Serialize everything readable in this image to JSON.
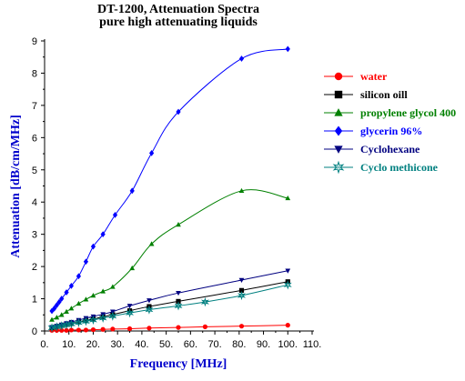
{
  "chart_data": {
    "type": "line",
    "title": "DT-1200, Attenuation Spectra",
    "subtitle": "pure high attenuating liquids",
    "xlabel": "Frequency [MHz]",
    "ylabel": "Attenuation [dB/cm/MHz]",
    "xlim": [
      0,
      110
    ],
    "ylim": [
      0,
      9
    ],
    "xticks": [
      "0.",
      "10.",
      "20.",
      "30.",
      "40.",
      "50.",
      "60.",
      "70.",
      "80.",
      "90.",
      "100.",
      "110."
    ],
    "yticks": [
      "0",
      "1",
      "2",
      "3",
      "4",
      "5",
      "6",
      "7",
      "8",
      "9"
    ],
    "grid": false,
    "legend_position": "right",
    "series": [
      {
        "name": "water",
        "color": "#ff0000",
        "marker": "circle",
        "x": [
          3,
          5,
          7,
          9,
          11,
          14,
          17,
          20,
          24,
          28,
          35,
          43,
          55,
          66,
          81,
          100
        ],
        "y": [
          0.02,
          0.02,
          0.02,
          0.02,
          0.03,
          0.03,
          0.03,
          0.04,
          0.05,
          0.06,
          0.07,
          0.09,
          0.11,
          0.13,
          0.15,
          0.18
        ]
      },
      {
        "name": "silicon oill",
        "color": "#000000",
        "marker": "square",
        "x": [
          3,
          5,
          7,
          9,
          11,
          14,
          17,
          20,
          24,
          28,
          35,
          43,
          55,
          81,
          100
        ],
        "y": [
          0.1,
          0.14,
          0.17,
          0.2,
          0.23,
          0.28,
          0.33,
          0.37,
          0.44,
          0.51,
          0.63,
          0.76,
          0.92,
          1.26,
          1.53
        ]
      },
      {
        "name": "propylene glycol 400",
        "color": "#008000",
        "marker": "triangle-up",
        "x": [
          3,
          5,
          7,
          9,
          11,
          14,
          17,
          20,
          24,
          28,
          36,
          44,
          55,
          81,
          100
        ],
        "y": [
          0.35,
          0.42,
          0.5,
          0.6,
          0.7,
          0.85,
          0.98,
          1.1,
          1.23,
          1.37,
          1.95,
          2.7,
          3.3,
          4.35,
          4.12
        ]
      },
      {
        "name": "glycerin 96%",
        "color": "#0000ff",
        "marker": "diamond",
        "x": [
          3,
          4,
          5,
          6,
          7,
          9,
          11,
          14,
          17,
          20,
          24,
          29,
          36,
          44,
          55,
          81,
          100
        ],
        "y": [
          0.62,
          0.7,
          0.8,
          0.9,
          1.0,
          1.2,
          1.4,
          1.7,
          2.15,
          2.62,
          3.0,
          3.6,
          4.35,
          5.52,
          6.8,
          8.45,
          8.75
        ]
      },
      {
        "name": "Cyclohexane",
        "color": "#000080",
        "marker": "triangle-down",
        "x": [
          3,
          5,
          7,
          9,
          11,
          14,
          17,
          20,
          24,
          28,
          35,
          43,
          55,
          81,
          100
        ],
        "y": [
          0.12,
          0.16,
          0.2,
          0.24,
          0.28,
          0.34,
          0.4,
          0.45,
          0.52,
          0.6,
          0.78,
          0.95,
          1.18,
          1.58,
          1.87
        ]
      },
      {
        "name": "Cyclo methicone",
        "color": "#008080",
        "marker": "star",
        "x": [
          3,
          5,
          7,
          9,
          11,
          14,
          17,
          20,
          24,
          28,
          35,
          43,
          55,
          66,
          81,
          100
        ],
        "y": [
          0.1,
          0.13,
          0.16,
          0.19,
          0.22,
          0.26,
          0.3,
          0.34,
          0.4,
          0.46,
          0.56,
          0.66,
          0.78,
          0.9,
          1.1,
          1.43
        ]
      }
    ]
  }
}
